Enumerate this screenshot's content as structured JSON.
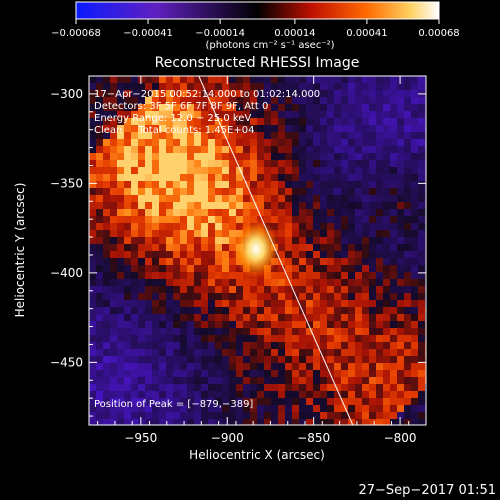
{
  "chart_data": {
    "type": "heatmap",
    "title": "Reconstructed RHESSI Image",
    "xlabel": "Heliocentric X (arcsec)",
    "ylabel": "Heliocentric Y (arcsec)",
    "xlim": [
      -980,
      -785
    ],
    "ylim": [
      -485,
      -290
    ],
    "x_ticks": [
      -950,
      -900,
      -850,
      -800
    ],
    "x_tick_labels": [
      "−950",
      "−900",
      "−850",
      "−800"
    ],
    "y_ticks": [
      -300,
      -350,
      -400,
      -450
    ],
    "y_tick_labels": [
      "−300",
      "−350",
      "−400",
      "−450"
    ],
    "colorbar": {
      "ticks": [
        -0.00068,
        -0.00041,
        -0.00014,
        0.00014,
        0.00041,
        0.00068
      ],
      "tick_labels": [
        "−0.00068",
        "−0.00041",
        "−0.00014",
        "0.00014",
        "0.00041",
        "0.00068"
      ],
      "units": "(photons cm⁻² s⁻¹ asec⁻²)",
      "range": [
        -0.00068,
        0.00068
      ]
    },
    "annotations": {
      "time_range": "17−Apr−2015 00:52:14.000 to 01:02:14.000",
      "detectors": "Detectors: 3F 5F 6F 7F 8F 9F, Att 0",
      "energy": "Energy Range: 12.0 − 25.0 keV",
      "clean": "Clean     Total counts: 1.45E+04",
      "peak": "Position of Peak = [−879,−389]"
    },
    "peak_position": [
      -879,
      -389
    ],
    "total_counts": 14500,
    "colors": {
      "negative": "#3b10c8",
      "zero": "#000000",
      "positive_low": "#c81000",
      "positive_mid": "#ff7a00",
      "positive_high": "#ffffff",
      "limb_line": "#ffffff"
    }
  },
  "footer": {
    "timestamp": "27−Sep−2017 01:51"
  }
}
